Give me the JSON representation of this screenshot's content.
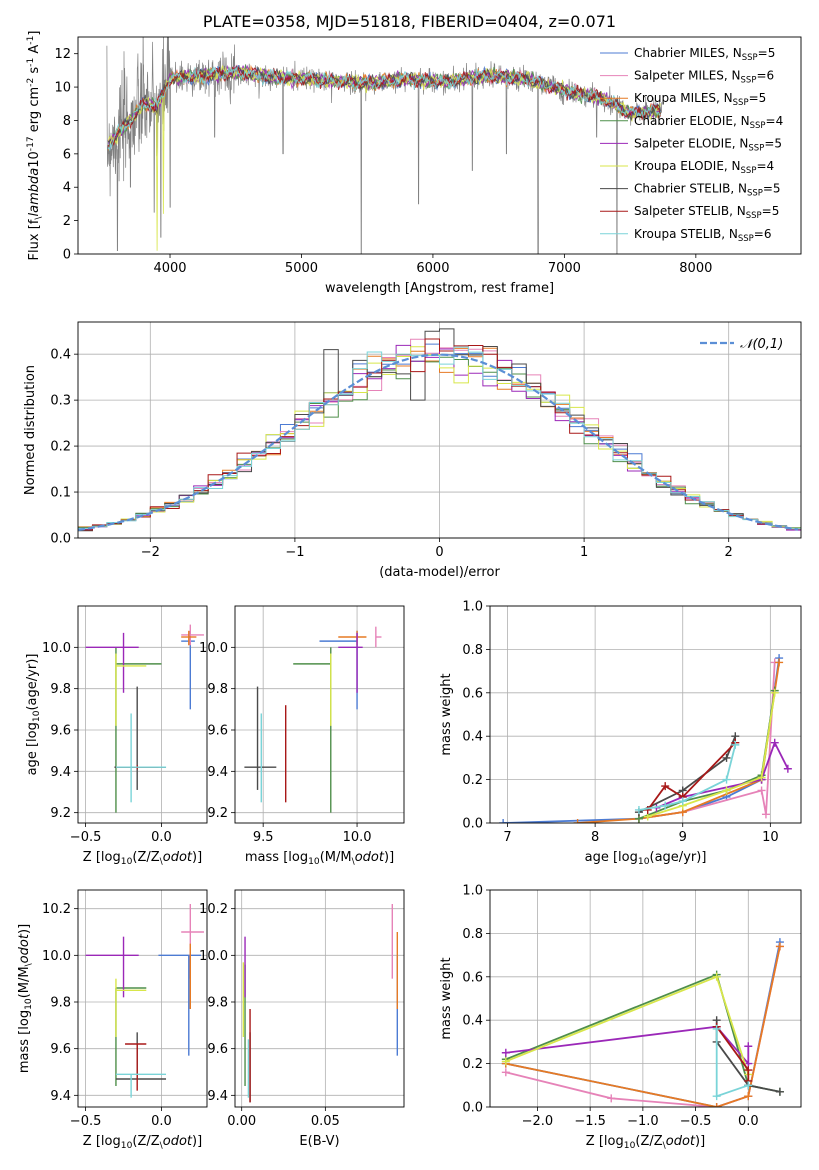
{
  "figure": {
    "title": "PLATE=0358, MJD=51818, FIBERID=0404, z=0.071"
  },
  "colors": {
    "Chabrier MILES": "#4c7bd3",
    "Salpeter MILES": "#e683b8",
    "Kroupa MILES": "#e67a24",
    "Chabrier ELODIE": "#4f8f4a",
    "Salpeter ELODIE": "#9b28b8",
    "Kroupa ELODIE": "#d8e64a",
    "Chabrier STELIB": "#4a4a4a",
    "Salpeter STELIB": "#a81818",
    "Kroupa STELIB": "#7ad4d8",
    "data": "#808080",
    "gaussian": "#5b8fd6"
  },
  "chart_data": [
    {
      "id": "spectrum",
      "type": "line",
      "xlabel": "wavelength [Angstrom, rest frame]",
      "ylabel": "Flux [f$_\\lambda$10$^{-17}$ erg cm$^{-2}$ s$^{-1}$ A$^{-1}$]",
      "xlim": [
        3300,
        8800
      ],
      "ylim": [
        0,
        13
      ],
      "xticks": [
        4000,
        5000,
        6000,
        7000,
        8000
      ],
      "yticks": [
        0,
        2,
        4,
        6,
        8,
        10,
        12
      ],
      "legend_position": "right",
      "legend": [
        {
          "base": "Chabrier MILES, N",
          "sub": "SSP",
          "tail": "=5"
        },
        {
          "base": "Salpeter MILES, N",
          "sub": "SSP",
          "tail": "=6"
        },
        {
          "base": "Kroupa MILES, N",
          "sub": "SSP",
          "tail": "=5"
        },
        {
          "base": "Chabrier ELODIE, N",
          "sub": "SSP",
          "tail": "=4"
        },
        {
          "base": "Salpeter ELODIE, N",
          "sub": "SSP",
          "tail": "=5"
        },
        {
          "base": "Kroupa ELODIE, N",
          "sub": "SSP",
          "tail": "=4"
        },
        {
          "base": "Chabrier STELIB, N",
          "sub": "SSP",
          "tail": "=5"
        },
        {
          "base": "Salpeter STELIB, N",
          "sub": "SSP",
          "tail": "=5"
        },
        {
          "base": "Kroupa STELIB, N",
          "sub": "SSP",
          "tail": "=6"
        }
      ],
      "continuum": [
        [
          3500,
          6.2
        ],
        [
          3600,
          7.2
        ],
        [
          3700,
          8.0
        ],
        [
          3800,
          9.0
        ],
        [
          3900,
          8.8
        ],
        [
          4000,
          10.5
        ],
        [
          4100,
          10.6
        ],
        [
          4300,
          10.7
        ],
        [
          4500,
          10.9
        ],
        [
          4800,
          10.6
        ],
        [
          5000,
          10.5
        ],
        [
          5200,
          10.4
        ],
        [
          5500,
          10.2
        ],
        [
          5800,
          10.5
        ],
        [
          6100,
          10.3
        ],
        [
          6400,
          10.7
        ],
        [
          6700,
          10.5
        ],
        [
          7000,
          9.8
        ],
        [
          7300,
          9.3
        ],
        [
          7500,
          8.4
        ],
        [
          7700,
          8.6
        ]
      ]
    },
    {
      "id": "residuals",
      "type": "step",
      "xlabel": "(data-model)/error",
      "ylabel": "Normed distribution",
      "xlim": [
        -2.5,
        2.5
      ],
      "ylim": [
        0,
        0.47
      ],
      "xticks": [
        -2,
        -1,
        0,
        1,
        2
      ],
      "yticks": [
        0.0,
        0.1,
        0.2,
        0.3,
        0.4
      ],
      "grid": true,
      "legend_position": "top-right",
      "legend_label": "𝒩(0,1)",
      "bin_width": 0.1
    },
    {
      "id": "age-vs-Z",
      "type": "errorbar",
      "xlabel": "Z [log$_{10}$(Z/Z$_\\odot$)]",
      "ylabel": "age  [log$_{10}$(age/yr)]",
      "xlim": [
        -0.55,
        0.3
      ],
      "ylim": [
        9.15,
        10.2
      ],
      "xticks": [
        -0.5,
        0.0
      ],
      "yticks": [
        9.2,
        9.4,
        9.6,
        9.8,
        10.0
      ],
      "grid": true,
      "points": [
        {
          "model": "Chabrier MILES",
          "x": 0.19,
          "y": 10.03,
          "xerr": [
            0.06,
            0.03
          ],
          "yerr": [
            0.33,
            0.05
          ]
        },
        {
          "model": "Salpeter MILES",
          "x": 0.19,
          "y": 10.06,
          "xerr": [
            0.06,
            0.09
          ],
          "yerr": [
            0.05,
            0.05
          ]
        },
        {
          "model": "Kroupa MILES",
          "x": 0.18,
          "y": 10.05,
          "xerr": [
            0.05,
            0.05
          ],
          "yerr": [
            0.04,
            0.03
          ]
        },
        {
          "model": "Chabrier ELODIE",
          "x": -0.3,
          "y": 9.92,
          "xerr": [
            0.0,
            0.3
          ],
          "yerr": [
            0.72,
            0.08
          ]
        },
        {
          "model": "Salpeter ELODIE",
          "x": -0.25,
          "y": 10.0,
          "xerr": [
            0.25,
            0.1
          ],
          "yerr": [
            0.22,
            0.07
          ]
        },
        {
          "model": "Kroupa ELODIE",
          "x": -0.3,
          "y": 9.91,
          "xerr": [
            0.0,
            0.2
          ],
          "yerr": [
            0.29,
            0.06
          ]
        },
        {
          "model": "Chabrier STELIB",
          "x": -0.16,
          "y": 9.42,
          "xerr": [
            0.15,
            0.19
          ],
          "yerr": [
            0.11,
            0.39
          ]
        },
        {
          "model": "Salpeter STELIB",
          "x": -0.16,
          "y": 9.42,
          "xerr": [
            0.14,
            0.14
          ],
          "yerr": [
            0.01,
            0.01
          ]
        },
        {
          "model": "Kroupa STELIB",
          "x": -0.2,
          "y": 9.42,
          "xerr": [
            0.1,
            0.23
          ],
          "yerr": [
            0.17,
            0.26
          ]
        }
      ]
    },
    {
      "id": "age-vs-mass",
      "type": "errorbar",
      "xlabel": "mass [log$_{10}$(M/M$_\\odot$)]",
      "ylabel": "",
      "xlim": [
        9.35,
        10.25
      ],
      "ylim": [
        9.15,
        10.2
      ],
      "xticks": [
        9.5,
        10.0
      ],
      "yticks": [
        9.2,
        9.4,
        9.6,
        9.8,
        10.0
      ],
      "grid": true,
      "points": [
        {
          "model": "Chabrier MILES",
          "x": 10.0,
          "y": 10.03,
          "xerr": [
            0.2,
            0.0
          ],
          "yerr": [
            0.33,
            0.05
          ]
        },
        {
          "model": "Salpeter MILES",
          "x": 10.1,
          "y": 10.05,
          "xerr": [
            0.0,
            0.03
          ],
          "yerr": [
            0.05,
            0.05
          ]
        },
        {
          "model": "Kroupa MILES",
          "x": 10.0,
          "y": 10.05,
          "xerr": [
            0.1,
            0.05
          ],
          "yerr": [
            0.04,
            0.03
          ]
        },
        {
          "model": "Chabrier ELODIE",
          "x": 9.86,
          "y": 9.92,
          "xerr": [
            0.2,
            0.0
          ],
          "yerr": [
            0.72,
            0.08
          ]
        },
        {
          "model": "Salpeter ELODIE",
          "x": 10.0,
          "y": 10.0,
          "xerr": [
            0.1,
            0.03
          ],
          "yerr": [
            0.22,
            0.07
          ]
        },
        {
          "model": "Kroupa ELODIE",
          "x": 9.86,
          "y": 9.91,
          "xerr": [
            0.0,
            0.0
          ],
          "yerr": [
            0.29,
            0.06
          ]
        },
        {
          "model": "Chabrier STELIB",
          "x": 9.47,
          "y": 9.42,
          "xerr": [
            0.07,
            0.1
          ],
          "yerr": [
            0.11,
            0.39
          ]
        },
        {
          "model": "Salpeter STELIB",
          "x": 9.62,
          "y": 9.41,
          "xerr": [
            0.0,
            0.0
          ],
          "yerr": [
            0.16,
            0.31
          ]
        },
        {
          "model": "Kroupa STELIB",
          "x": 9.49,
          "y": 9.42,
          "xerr": [
            0.0,
            0.0
          ],
          "yerr": [
            0.17,
            0.26
          ]
        }
      ]
    },
    {
      "id": "weight-vs-age",
      "type": "line",
      "xlabel": "age  [log$_{10}$(age/yr)]",
      "ylabel": "mass weight",
      "xlim": [
        6.8,
        10.35
      ],
      "ylim": [
        0,
        1.0
      ],
      "xticks": [
        7,
        8,
        9,
        10
      ],
      "yticks": [
        0.0,
        0.2,
        0.4,
        0.6,
        0.8,
        1.0
      ],
      "grid": true,
      "series": [
        {
          "model": "Chabrier MILES",
          "x": [
            6.95,
            8.5,
            9.0,
            9.5,
            9.9,
            10.1
          ],
          "values": [
            0.0,
            0.02,
            0.05,
            0.12,
            0.2,
            0.76
          ]
        },
        {
          "model": "Salpeter MILES",
          "x": [
            8.5,
            9.0,
            9.9,
            9.95,
            10.05
          ],
          "values": [
            0.02,
            0.05,
            0.15,
            0.04,
            0.74
          ]
        },
        {
          "model": "Kroupa MILES",
          "x": [
            7.8,
            8.5,
            9.0,
            9.9,
            10.1
          ],
          "values": [
            0.0,
            0.02,
            0.05,
            0.2,
            0.74
          ]
        },
        {
          "model": "Chabrier ELODIE",
          "x": [
            8.5,
            9.0,
            9.5,
            9.9,
            10.05
          ],
          "values": [
            0.02,
            0.1,
            0.15,
            0.22,
            0.61
          ]
        },
        {
          "model": "Salpeter ELODIE",
          "x": [
            8.7,
            9.0,
            9.9,
            10.05,
            10.2
          ],
          "values": [
            0.07,
            0.12,
            0.2,
            0.37,
            0.25
          ]
        },
        {
          "model": "Kroupa ELODIE",
          "x": [
            8.6,
            9.0,
            9.5,
            9.9,
            10.05
          ],
          "values": [
            0.03,
            0.08,
            0.15,
            0.21,
            0.6
          ]
        },
        {
          "model": "Chabrier STELIB",
          "x": [
            8.5,
            9.0,
            9.5,
            9.6
          ],
          "values": [
            0.05,
            0.15,
            0.3,
            0.4
          ]
        },
        {
          "model": "Salpeter STELIB",
          "x": [
            8.6,
            8.8,
            9.0,
            9.6
          ],
          "values": [
            0.06,
            0.17,
            0.12,
            0.37
          ]
        },
        {
          "model": "Kroupa STELIB",
          "x": [
            8.5,
            8.8,
            9.0,
            9.5,
            9.6
          ],
          "values": [
            0.06,
            0.08,
            0.1,
            0.2,
            0.36
          ]
        }
      ]
    },
    {
      "id": "mass-vs-Z",
      "type": "errorbar",
      "xlabel": "Z [log$_{10}$(Z/Z$_\\odot$)]",
      "ylabel": "mass [log$_{10}$(M/M$_\\odot$)]",
      "xlim": [
        -0.55,
        0.3
      ],
      "ylim": [
        9.35,
        10.28
      ],
      "xticks": [
        -0.5,
        0.0
      ],
      "yticks": [
        9.4,
        9.6,
        9.8,
        10.0,
        10.2
      ],
      "grid": true,
      "points": [
        {
          "model": "Chabrier MILES",
          "x": 0.18,
          "y": 10.0,
          "xerr": [
            0.2,
            0.08
          ],
          "yerr": [
            0.43,
            0.0
          ]
        },
        {
          "model": "Salpeter MILES",
          "x": 0.19,
          "y": 10.1,
          "xerr": [
            0.06,
            0.09
          ],
          "yerr": [
            0.2,
            0.12
          ]
        },
        {
          "model": "Kroupa MILES",
          "x": 0.19,
          "y": 10.0,
          "xerr": [
            0.0,
            0.0
          ],
          "yerr": [
            0.23,
            0.05
          ]
        },
        {
          "model": "Chabrier ELODIE",
          "x": -0.3,
          "y": 9.86,
          "xerr": [
            0.0,
            0.2
          ],
          "yerr": [
            0.42,
            0.0
          ]
        },
        {
          "model": "Salpeter ELODIE",
          "x": -0.25,
          "y": 10.0,
          "xerr": [
            0.25,
            0.1
          ],
          "yerr": [
            0.18,
            0.08
          ]
        },
        {
          "model": "Kroupa ELODIE",
          "x": -0.3,
          "y": 9.85,
          "xerr": [
            0.0,
            0.2
          ],
          "yerr": [
            0.2,
            0.05
          ]
        },
        {
          "model": "Chabrier STELIB",
          "x": -0.16,
          "y": 9.47,
          "xerr": [
            0.14,
            0.19
          ],
          "yerr": [
            0.0,
            0.2
          ]
        },
        {
          "model": "Salpeter STELIB",
          "x": -0.16,
          "y": 9.62,
          "xerr": [
            0.08,
            0.06
          ],
          "yerr": [
            0.2,
            0.0
          ]
        },
        {
          "model": "Kroupa STELIB",
          "x": -0.2,
          "y": 9.49,
          "xerr": [
            0.1,
            0.23
          ],
          "yerr": [
            0.1,
            0.0
          ]
        }
      ]
    },
    {
      "id": "mass-vs-EBV",
      "type": "errorbar",
      "xlabel": "E(B-V)",
      "ylabel": "",
      "xlim": [
        -0.004,
        0.097
      ],
      "ylim": [
        9.35,
        10.28
      ],
      "xticks": [
        0.0,
        0.05
      ],
      "yticks": [
        9.4,
        9.6,
        9.8,
        10.0,
        10.2
      ],
      "grid": true,
      "points": [
        {
          "model": "Chabrier MILES",
          "x": 0.093,
          "y": 10.0,
          "xerr": [
            0,
            0
          ],
          "yerr": [
            0.43,
            0.0
          ]
        },
        {
          "model": "Salpeter MILES",
          "x": 0.09,
          "y": 10.1,
          "xerr": [
            0,
            0
          ],
          "yerr": [
            0.2,
            0.12
          ]
        },
        {
          "model": "Kroupa MILES",
          "x": 0.093,
          "y": 10.0,
          "xerr": [
            0,
            0
          ],
          "yerr": [
            0.23,
            0.1
          ]
        },
        {
          "model": "Chabrier ELODIE",
          "x": 0.002,
          "y": 9.86,
          "xerr": [
            0,
            0
          ],
          "yerr": [
            0.42,
            0.1
          ]
        },
        {
          "model": "Salpeter ELODIE",
          "x": 0.002,
          "y": 10.0,
          "xerr": [
            0,
            0
          ],
          "yerr": [
            0.18,
            0.08
          ]
        },
        {
          "model": "Kroupa ELODIE",
          "x": 0.001,
          "y": 9.85,
          "xerr": [
            0,
            0
          ],
          "yerr": [
            0.2,
            0.12
          ]
        },
        {
          "model": "Chabrier STELIB",
          "x": 0.005,
          "y": 9.47,
          "xerr": [
            0,
            0
          ],
          "yerr": [
            0.1,
            0.2
          ]
        },
        {
          "model": "Salpeter STELIB",
          "x": 0.005,
          "y": 9.62,
          "xerr": [
            0,
            0
          ],
          "yerr": [
            0.25,
            0.15
          ]
        },
        {
          "model": "Kroupa STELIB",
          "x": 0.004,
          "y": 9.49,
          "xerr": [
            0,
            0
          ],
          "yerr": [
            0.1,
            0.15
          ]
        }
      ]
    },
    {
      "id": "weight-vs-Z",
      "type": "line",
      "xlabel": "Z [log$_{10}$(Z/Z$_\\odot$)]",
      "ylabel": "mass weight",
      "xlim": [
        -2.45,
        0.5
      ],
      "ylim": [
        0,
        1.0
      ],
      "xticks": [
        -2.0,
        -1.5,
        -1.0,
        -0.5,
        0.0
      ],
      "yticks": [
        0.0,
        0.2,
        0.4,
        0.6,
        0.8,
        1.0
      ],
      "grid": true,
      "series": [
        {
          "model": "Chabrier MILES",
          "x": [
            -2.3,
            -0.3,
            0.0,
            0.3
          ],
          "values": [
            0.2,
            0.0,
            0.05,
            0.76
          ]
        },
        {
          "model": "Salpeter MILES",
          "x": [
            -2.3,
            -1.3,
            -0.3,
            0.0,
            0.3
          ],
          "values": [
            0.16,
            0.04,
            0.0,
            0.05,
            0.74
          ]
        },
        {
          "model": "Kroupa MILES",
          "x": [
            -2.3,
            -0.3,
            0.0,
            0.3
          ],
          "values": [
            0.2,
            0.0,
            0.05,
            0.74
          ]
        },
        {
          "model": "Chabrier ELODIE",
          "x": [
            -2.3,
            -0.3,
            0.0,
            0.3
          ],
          "values": [
            0.22,
            0.61,
            0.1,
            0.07
          ]
        },
        {
          "model": "Salpeter ELODIE",
          "x": [
            -2.3,
            -0.3,
            0.0,
            0.0
          ],
          "values": [
            0.25,
            0.37,
            0.2,
            0.28
          ]
        },
        {
          "model": "Kroupa ELODIE",
          "x": [
            -2.3,
            -0.3,
            0.0
          ],
          "values": [
            0.21,
            0.6,
            0.15
          ]
        },
        {
          "model": "Chabrier STELIB",
          "x": [
            -0.3,
            -0.3,
            0.0,
            0.3
          ],
          "values": [
            0.4,
            0.3,
            0.1,
            0.07
          ]
        },
        {
          "model": "Salpeter STELIB",
          "x": [
            -0.3,
            0.0,
            0.0
          ],
          "values": [
            0.37,
            0.17,
            0.12
          ]
        },
        {
          "model": "Kroupa STELIB",
          "x": [
            -0.3,
            -0.3,
            0.0
          ],
          "values": [
            0.36,
            0.05,
            0.1
          ]
        }
      ]
    }
  ]
}
